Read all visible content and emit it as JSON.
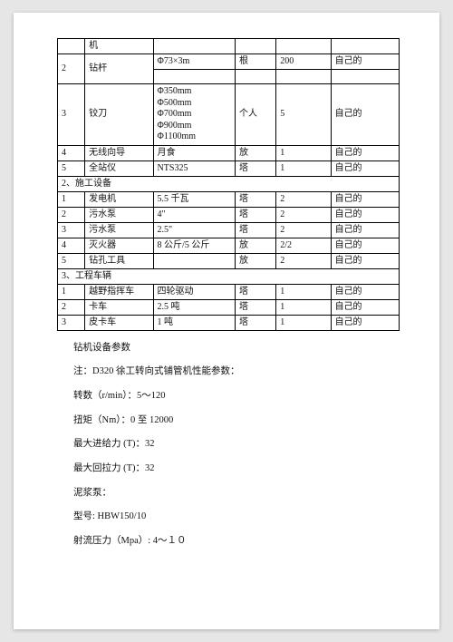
{
  "table": {
    "columns": [
      {
        "class": "col0"
      },
      {
        "class": "col1"
      },
      {
        "class": "col2"
      },
      {
        "class": "col3"
      },
      {
        "class": "col4"
      },
      {
        "class": "col5"
      }
    ],
    "r0": {
      "c1": "机"
    },
    "r1": {
      "c0": "2",
      "c1": "钻杆",
      "c2": "Φ73×3m",
      "c3": "根",
      "c4": "200",
      "c5": "自己的"
    },
    "r2": {
      "c0": "3",
      "c1": "铰刀",
      "c2a": "Φ350mm",
      "c2b": "Φ500mm",
      "c2c": "Φ700mm",
      "c2d": "Φ900mm",
      "c2e": "Φ1100mm",
      "c3": "个人",
      "c4": "5",
      "c5": "自己的"
    },
    "r3": {
      "c0": "4",
      "c1": "无线向导",
      "c2": "月食",
      "c3": "放",
      "c4": "1",
      "c5": "自己的"
    },
    "r4": {
      "c0": "5",
      "c1": "全站仪",
      "c2": "NTS325",
      "c3": "塔",
      "c4": "1",
      "c5": "自己的"
    },
    "sec2": "2、施工设备",
    "r5": {
      "c0": "1",
      "c1": "发电机",
      "c2": "5.5 千瓦",
      "c3": "塔",
      "c4": "2",
      "c5": "自己的"
    },
    "r6": {
      "c0": "2",
      "c1": "污水泵",
      "c2": "4\"",
      "c3": "塔",
      "c4": "2",
      "c5": "自己的"
    },
    "r7": {
      "c0": "3",
      "c1": "污水泵",
      "c2": "2.5\"",
      "c3": "塔",
      "c4": "2",
      "c5": "自己的"
    },
    "r8": {
      "c0": "4",
      "c1": "灭火器",
      "c2": "8 公斤/5 公斤",
      "c3": "放",
      "c4": "2/2",
      "c5": "自己的"
    },
    "r9": {
      "c0": "5",
      "c1": "钻孔工具",
      "c2": "",
      "c3": "放",
      "c4": "2",
      "c5": "自己的"
    },
    "sec3": "3、工程车辆",
    "r10": {
      "c0": "1",
      "c1": "越野指挥车",
      "c2": "四轮驱动",
      "c3": "塔",
      "c4": "1",
      "c5": "自己的"
    },
    "r11": {
      "c0": "2",
      "c1": "卡车",
      "c2": "2.5 吨",
      "c3": "塔",
      "c4": "1",
      "c5": "自己的"
    },
    "r12": {
      "c0": "3",
      "c1": "皮卡车",
      "c2": "1 吨",
      "c3": "塔",
      "c4": "1",
      "c5": "自己的"
    }
  },
  "body": {
    "p1": "钻机设备参数",
    "p2": "注：D320 徐工转向式铺管机性能参数：",
    "p3": "转数（r/min）：5～120",
    "p4": "扭矩（Nm）：0 至 12000",
    "p5": "最大进给力 (T)：32",
    "p6": "最大回拉力 (T)：32",
    "p7": "泥浆泵：",
    "p8": "型号: HBW150/10",
    "p9": "射流压力（Mpa）: 4～１０"
  }
}
